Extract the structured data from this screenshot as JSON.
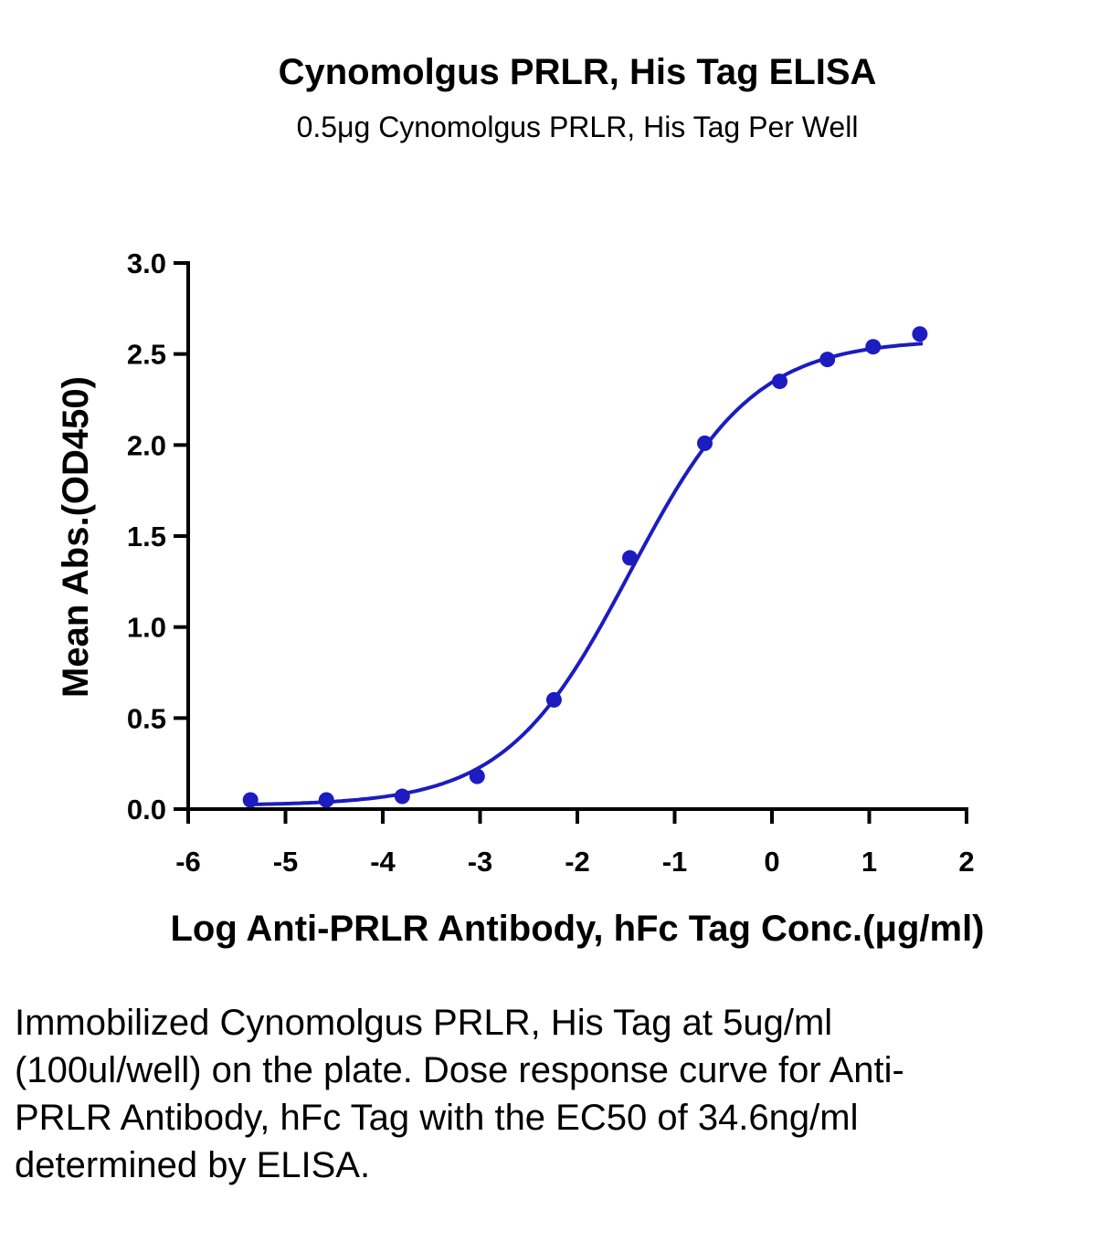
{
  "chart_data": {
    "type": "scatter",
    "title": "Cynomolgus PRLR, His Tag ELISA",
    "subtitle": "0.5μg Cynomolgus PRLR, His Tag Per Well",
    "xlabel": "Log Anti-PRLR Antibody, hFc Tag Conc.(μg/ml)",
    "ylabel": "Mean Abs.(OD450)",
    "xlim": [
      -6,
      2
    ],
    "ylim": [
      0,
      3.0
    ],
    "xticks": [
      "-6",
      "-5",
      "-4",
      "-3",
      "-2",
      "-1",
      "0",
      "1",
      "2"
    ],
    "yticks": [
      "0.0",
      "0.5",
      "1.0",
      "1.5",
      "2.0",
      "2.5",
      "3.0"
    ],
    "grid": false,
    "color": "#1c1cc0",
    "series": [
      {
        "name": "Anti-PRLR Antibody, hFc Tag",
        "x": [
          -5.36,
          -4.58,
          -3.8,
          -3.03,
          -2.24,
          -1.46,
          -0.69,
          0.08,
          0.57,
          1.04,
          1.52
        ],
        "y": [
          0.05,
          0.05,
          0.07,
          0.18,
          0.6,
          1.38,
          2.01,
          2.35,
          2.47,
          2.54,
          2.61
        ]
      }
    ],
    "fit": {
      "model": "4PL",
      "bottom": 0.02,
      "top": 2.58,
      "logEC50": -1.46,
      "hill": 0.68,
      "xrange": [
        -5.4,
        1.55
      ]
    }
  },
  "caption": "Immobilized Cynomolgus PRLR, His Tag at 5ug/ml (100ul/well) on the plate. Dose response curve for Anti-PRLR Antibody, hFc Tag with the EC50 of 34.6ng/ml determined by ELISA."
}
